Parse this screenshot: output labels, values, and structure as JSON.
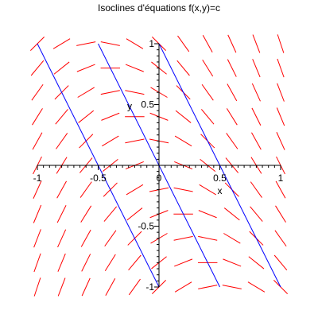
{
  "chart_data": {
    "type": "line",
    "title": "Isoclines d'équations f(x,y)=c",
    "xlabel": "x",
    "ylabel": "y",
    "xlim": [
      -1,
      1
    ],
    "ylim": [
      -1,
      1
    ],
    "x_ticks": [
      -1,
      -0.5,
      0,
      0.5,
      1
    ],
    "y_ticks": [
      -1,
      -0.5,
      0,
      0.5,
      1
    ],
    "x_tick_labels": [
      "-1",
      "-0.5",
      "0",
      "0.5",
      "1"
    ],
    "y_tick_labels": [
      "-1",
      "-0.5",
      "0",
      "0.5",
      "1"
    ],
    "grid": false,
    "axes_through_origin": true,
    "isoclines": [
      {
        "x": [
          -1,
          -0.5
        ],
        "y": [
          1,
          0
        ],
        "color": "#0000ff"
      },
      {
        "x": [
          -0.5,
          0
        ],
        "y": [
          0,
          -1
        ],
        "color": "#0000ff"
      },
      {
        "x": [
          -0.5,
          0
        ],
        "y": [
          1,
          0
        ],
        "color": "#0000ff"
      },
      {
        "x": [
          0,
          0.5
        ],
        "y": [
          0,
          -1
        ],
        "color": "#0000ff"
      },
      {
        "x": [
          0,
          0.5
        ],
        "y": [
          1,
          0
        ],
        "color": "#0000ff"
      },
      {
        "x": [
          0.5,
          1
        ],
        "y": [
          0,
          -1
        ],
        "color": "#0000ff"
      }
    ],
    "direction_field": {
      "color": "#ff0000",
      "x_grid": [
        -1,
        -0.8,
        -0.6,
        -0.4,
        -0.2,
        0,
        0.2,
        0.4,
        0.6,
        0.8,
        1
      ],
      "y_grid": [
        -1,
        -0.8,
        -0.6,
        -0.4,
        -0.2,
        0,
        0.2,
        0.4,
        0.6,
        0.8,
        1
      ],
      "segment_length": 0.16
    },
    "colors": {
      "isocline": "#0000ff",
      "field": "#ff0000",
      "axis": "#000000"
    }
  }
}
